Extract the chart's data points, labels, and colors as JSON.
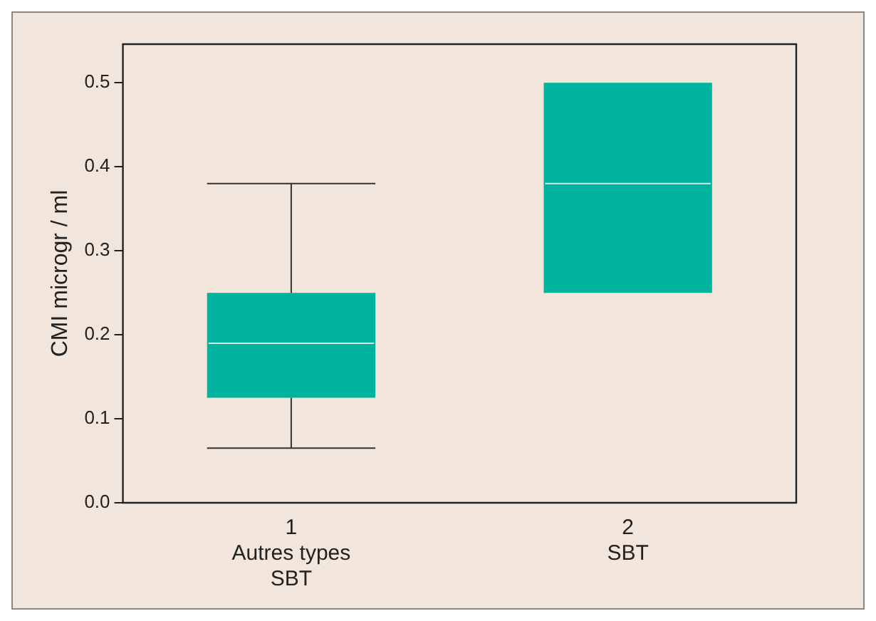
{
  "chart_data": {
    "type": "box",
    "ylabel": "CMI microgr / ml",
    "categories": [
      "1\nAutres types\nSBT",
      "2\nSBT"
    ],
    "boxes": [
      {
        "low": 0.065,
        "q1": 0.125,
        "median": 0.19,
        "q3": 0.25,
        "high": 0.38
      },
      {
        "low": 0.25,
        "q1": 0.25,
        "median": 0.38,
        "q3": 0.5,
        "high": 0.5
      }
    ],
    "color": "#00b39e",
    "ylim": [
      0,
      0.546
    ],
    "yticks": [
      {
        "value": 0,
        "label": "0.0"
      },
      {
        "value": 0.1,
        "label": "0.1"
      },
      {
        "value": 0.2,
        "label": "0.2"
      },
      {
        "value": 0.3,
        "label": "0.3"
      },
      {
        "value": 0.4,
        "label": "0.4"
      },
      {
        "value": 0.5,
        "label": "0.5"
      }
    ],
    "grid": false,
    "legend": false
  }
}
